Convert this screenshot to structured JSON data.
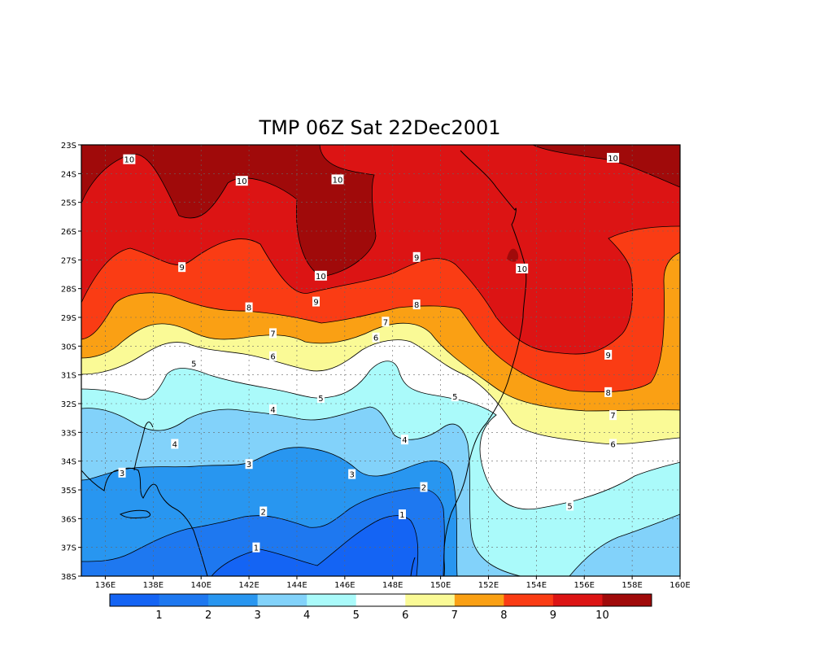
{
  "title": "TMP 06Z Sat 22Dec2001",
  "map": {
    "lat_labels": [
      "23S",
      "24S",
      "25S",
      "26S",
      "27S",
      "28S",
      "29S",
      "30S",
      "31S",
      "32S",
      "33S",
      "34S",
      "35S",
      "36S",
      "37S",
      "38S"
    ],
    "lon_labels": [
      "136E",
      "138E",
      "140E",
      "142E",
      "144E",
      "146E",
      "148E",
      "150E",
      "152E",
      "154E",
      "156E",
      "158E",
      "160E"
    ],
    "lon_range": [
      135,
      160
    ],
    "lat_range": [
      -38,
      -23
    ],
    "grid": "dotted"
  },
  "colorbar": {
    "colors": [
      "#1464f4",
      "#1e78f0",
      "#2896f0",
      "#82d2fa",
      "#aafafa",
      "#ffffff",
      "#fafa96",
      "#faa014",
      "#fa3c14",
      "#dc1414",
      "#a00a0a"
    ],
    "labels": [
      "1",
      "2",
      "3",
      "4",
      "5",
      "6",
      "7",
      "8",
      "9",
      "10"
    ]
  },
  "contour_labels": [
    {
      "text": "10",
      "lon": 137.0,
      "lat": -23.5
    },
    {
      "text": "10",
      "lon": 141.7,
      "lat": -24.25
    },
    {
      "text": "10",
      "lon": 145.7,
      "lat": -24.2
    },
    {
      "text": "10",
      "lon": 157.2,
      "lat": -23.45
    },
    {
      "text": "10",
      "lon": 145.0,
      "lat": -27.55
    },
    {
      "text": "10",
      "lon": 153.4,
      "lat": -27.3
    },
    {
      "text": "9",
      "lon": 139.2,
      "lat": -27.25
    },
    {
      "text": "9",
      "lon": 149.0,
      "lat": -26.9
    },
    {
      "text": "9",
      "lon": 144.8,
      "lat": -28.45
    },
    {
      "text": "9",
      "lon": 157.0,
      "lat": -30.3
    },
    {
      "text": "8",
      "lon": 142.0,
      "lat": -28.65
    },
    {
      "text": "8",
      "lon": 149.0,
      "lat": -28.55
    },
    {
      "text": "8",
      "lon": 157.0,
      "lat": -31.6
    },
    {
      "text": "7",
      "lon": 143.0,
      "lat": -29.55
    },
    {
      "text": "7",
      "lon": 147.7,
      "lat": -29.15
    },
    {
      "text": "7",
      "lon": 157.2,
      "lat": -32.4
    },
    {
      "text": "6",
      "lon": 143.0,
      "lat": -30.35
    },
    {
      "text": "6",
      "lon": 147.3,
      "lat": -29.7
    },
    {
      "text": "6",
      "lon": 157.2,
      "lat": -33.4
    },
    {
      "text": "5",
      "lon": 139.7,
      "lat": -30.6
    },
    {
      "text": "5",
      "lon": 145.0,
      "lat": -31.8
    },
    {
      "text": "5",
      "lon": 150.6,
      "lat": -31.75
    },
    {
      "text": "5",
      "lon": 155.4,
      "lat": -35.55
    },
    {
      "text": "4",
      "lon": 143.0,
      "lat": -32.2
    },
    {
      "text": "4",
      "lon": 138.9,
      "lat": -33.4
    },
    {
      "text": "4",
      "lon": 148.5,
      "lat": -33.25
    },
    {
      "text": "3",
      "lon": 136.7,
      "lat": -34.4
    },
    {
      "text": "3",
      "lon": 142.0,
      "lat": -34.1
    },
    {
      "text": "3",
      "lon": 146.3,
      "lat": -34.45
    },
    {
      "text": "2",
      "lon": 142.6,
      "lat": -35.75
    },
    {
      "text": "2",
      "lon": 149.3,
      "lat": -34.9
    },
    {
      "text": "1",
      "lon": 148.4,
      "lat": -35.85
    },
    {
      "text": "1",
      "lon": 142.3,
      "lat": -37.0
    }
  ]
}
